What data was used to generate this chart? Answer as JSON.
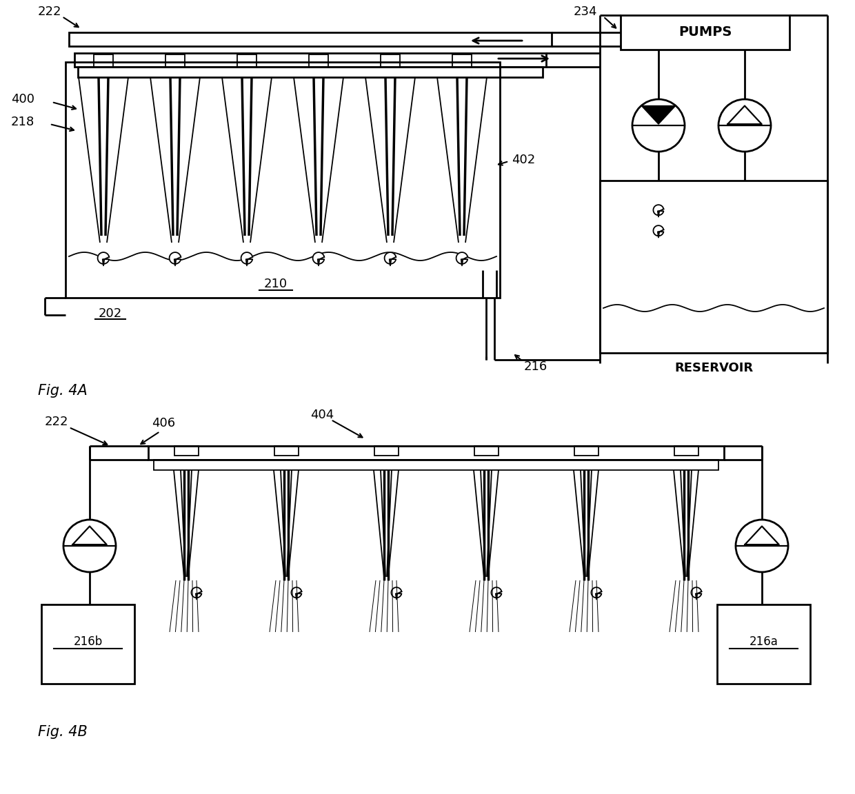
{
  "fig_width": 12.4,
  "fig_height": 11.52,
  "bg_color": "#ffffff",
  "line_color": "#000000",
  "lw": 2.0,
  "lw_thin": 1.3,
  "lw_thick": 2.5,
  "labels": {
    "222": "222",
    "234": "234",
    "400": "400",
    "218": "218",
    "402": "402",
    "210": "210",
    "202": "202",
    "216": "216",
    "PUMPS": "PUMPS",
    "RESERVOIR": "RESERVOIR",
    "404": "404",
    "406": "406",
    "216b": "216b",
    "216a": "216a",
    "figA": "Fig. 4A",
    "figB": "Fig. 4B"
  }
}
